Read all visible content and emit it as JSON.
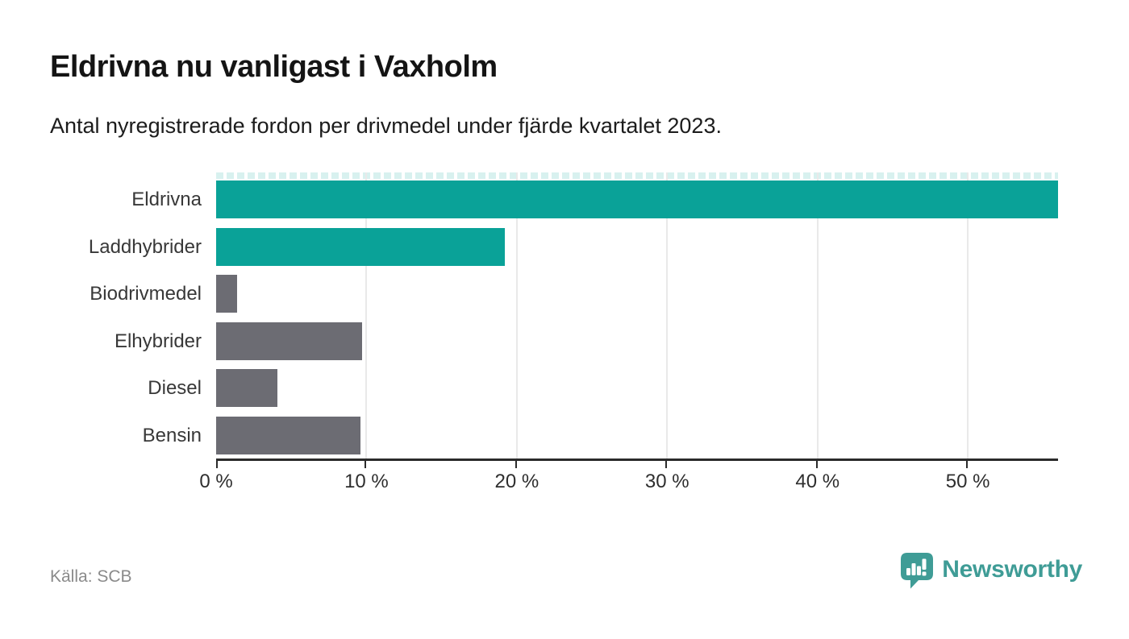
{
  "chart_data": {
    "type": "bar",
    "orientation": "horizontal",
    "title": "Eldrivna nu vanligast i Vaxholm",
    "subtitle": "Antal nyregistrerade fordon per drivmedel under fjärde kvartalet 2023.",
    "categories": [
      "Eldrivna",
      "Laddhybrider",
      "Biodrivmedel",
      "Elhybrider",
      "Diesel",
      "Bensin"
    ],
    "values": [
      56.0,
      19.2,
      1.4,
      9.7,
      4.1,
      9.6
    ],
    "unit": "%",
    "xlim": [
      0,
      56
    ],
    "x_ticks": [
      {
        "value": 0,
        "label": "0 %"
      },
      {
        "value": 10,
        "label": "10 %"
      },
      {
        "value": 20,
        "label": "20 %"
      },
      {
        "value": 30,
        "label": "30 %"
      },
      {
        "value": 40,
        "label": "40 %"
      },
      {
        "value": 50,
        "label": "50 %"
      }
    ],
    "grid": true,
    "legend_position": "none",
    "colors": {
      "highlight": "#0aa298",
      "default": "#6c6c73",
      "dash_strip": "#d8f1ef",
      "gridline": "#e9e9e9",
      "axis": "#2b2b2b"
    },
    "bar_color_keys": [
      "highlight",
      "highlight",
      "default",
      "default",
      "default",
      "default"
    ]
  },
  "footer": {
    "source": "Källa: SCB",
    "brand_name": "Newsworthy",
    "brand_color": "#3f9c96"
  }
}
